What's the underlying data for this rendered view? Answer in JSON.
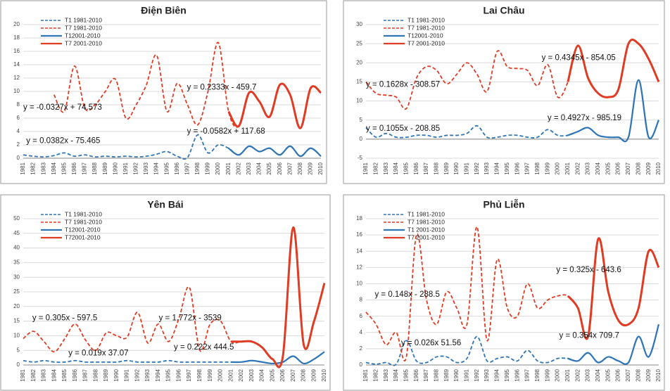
{
  "chart_data": [
    {
      "type": "line",
      "title": "Điện Biên",
      "categories": [
        "1981",
        "1982",
        "1983",
        "1984",
        "1985",
        "1986",
        "1987",
        "1988",
        "1989",
        "1990",
        "1991",
        "1992",
        "1993",
        "1994",
        "1995",
        "1996",
        "1997",
        "1998",
        "1999",
        "2000",
        "2001",
        "2002",
        "2003",
        "2004",
        "2005",
        "2006",
        "2007",
        "2008",
        "2009",
        "2010"
      ],
      "ylim": [
        0,
        20
      ],
      "yticks": [
        0,
        2,
        4,
        6,
        8,
        10,
        12,
        14,
        16,
        18,
        20
      ],
      "grid": true,
      "series": [
        {
          "name": "T1 1981-2010",
          "color": "#2e75b6",
          "dashed": true,
          "values": [
            0.5,
            0.3,
            0.2,
            0.4,
            0.8,
            0.3,
            0.5,
            0.2,
            0.3,
            0.2,
            0.3,
            0.2,
            0.3,
            0.6,
            1.0,
            0.3,
            0.1,
            3.5,
            0.8,
            2.0,
            1.5,
            0.5,
            1.8,
            1.0,
            1.5,
            0.5,
            1.8,
            0.3,
            1.5,
            0.3
          ]
        },
        {
          "name": "T7 1981-2010",
          "color": "#e03c24",
          "dashed": true,
          "values": [
            null,
            null,
            null,
            9.5,
            7,
            13.8,
            7.5,
            8,
            10,
            11.8,
            6,
            8,
            11,
            15.4,
            7,
            11.2,
            8,
            5,
            10,
            17.3,
            7,
            4.8,
            9.8,
            8.5,
            6.2,
            11,
            9.5,
            4.5,
            10.5,
            9.8
          ]
        },
        {
          "name": "T12001-2010",
          "color": "#2e75b6",
          "dashed": false,
          "values": [
            null,
            null,
            null,
            null,
            null,
            null,
            null,
            null,
            null,
            null,
            null,
            null,
            null,
            null,
            null,
            null,
            null,
            null,
            null,
            null,
            1.5,
            0.5,
            1.8,
            1.0,
            1.5,
            0.5,
            1.8,
            0.3,
            1.5,
            0.3
          ]
        },
        {
          "name": "T7 2001-2010",
          "color": "#e03c24",
          "dashed": false,
          "values": [
            null,
            null,
            null,
            null,
            null,
            null,
            null,
            null,
            null,
            null,
            null,
            null,
            null,
            null,
            null,
            null,
            null,
            null,
            null,
            null,
            7,
            4.8,
            9.8,
            8.5,
            6.2,
            11,
            9.5,
            4.5,
            10.5,
            9.8
          ]
        }
      ],
      "annotations": [
        "y = 0.2333x - 459.7",
        "y = -0.0327x + 74.573",
        "y = -0.0582x + 117.68",
        "y = 0.0382x - 75.465"
      ]
    },
    {
      "type": "line",
      "title": "Lai Châu",
      "categories": [
        "1981",
        "1982",
        "1983",
        "1984",
        "1985",
        "1986",
        "1987",
        "1988",
        "1989",
        "1990",
        "1991",
        "1992",
        "1993",
        "1994",
        "1995",
        "1996",
        "1997",
        "1998",
        "1999",
        "2000",
        "2001",
        "2002",
        "2003",
        "2004",
        "2005",
        "2006",
        "2007",
        "2008",
        "2009",
        "2010"
      ],
      "ylim": [
        -5,
        30
      ],
      "yticks": [
        -5,
        0,
        5,
        10,
        15,
        20,
        25,
        30
      ],
      "grid": true,
      "series": [
        {
          "name": "T1 1981-2010",
          "color": "#2e75b6",
          "dashed": true,
          "values": [
            3,
            0.5,
            1.5,
            0.5,
            0.5,
            1,
            1,
            0.5,
            1,
            1,
            1.5,
            3.5,
            0.5,
            0.5,
            1,
            1,
            0.5,
            0.5,
            2.5,
            1,
            1,
            2,
            3,
            1,
            0.5,
            0.5,
            0.5,
            15.5,
            0.5,
            5
          ]
        },
        {
          "name": "T7 1981-2010",
          "color": "#e03c24",
          "dashed": true,
          "values": [
            15,
            12,
            11.5,
            11,
            8,
            16,
            19,
            18,
            14.5,
            17,
            20,
            17,
            12.5,
            23,
            19,
            18.5,
            18,
            14,
            19.5,
            11,
            15,
            24.5,
            16,
            12,
            11,
            13,
            25,
            25,
            21,
            15
          ]
        },
        {
          "name": "T12001-2010",
          "color": "#2e75b6",
          "dashed": false,
          "values": [
            null,
            null,
            null,
            null,
            null,
            null,
            null,
            null,
            null,
            null,
            null,
            null,
            null,
            null,
            null,
            null,
            null,
            null,
            null,
            null,
            1,
            2,
            3,
            1,
            0.5,
            0.5,
            0.5,
            15.5,
            0.5,
            5
          ]
        },
        {
          "name": "T7 2001-2010",
          "color": "#e03c24",
          "dashed": false,
          "values": [
            null,
            null,
            null,
            null,
            null,
            null,
            null,
            null,
            null,
            null,
            null,
            null,
            null,
            null,
            null,
            null,
            null,
            null,
            null,
            null,
            15,
            24.5,
            16,
            12,
            11,
            13,
            25,
            25,
            21,
            15
          ]
        }
      ],
      "annotations": [
        "y = 0.4345x - 854.05",
        "y = 0.1628x - 308.57",
        "y = 0.4927x - 985.19",
        "y = 0.1055x - 208.85"
      ]
    },
    {
      "type": "line",
      "title": "Yên Bái",
      "categories": [
        "1981",
        "1982",
        "1983",
        "1984",
        "1985",
        "1986",
        "1987",
        "1988",
        "1989",
        "1990",
        "1991",
        "1992",
        "1993",
        "1994",
        "1995",
        "1996",
        "1997",
        "1998",
        "1999",
        "2000",
        "2001",
        "2002",
        "2003",
        "2004",
        "2005",
        "2006",
        "2007",
        "2008",
        "2009",
        "2010"
      ],
      "ylim": [
        0,
        50
      ],
      "yticks": [
        0,
        5,
        10,
        15,
        20,
        25,
        30,
        35,
        40,
        45,
        50
      ],
      "grid": true,
      "series": [
        {
          "name": "T1 1981-2010",
          "color": "#2e75b6",
          "dashed": true,
          "values": [
            1.5,
            1,
            1.5,
            1,
            1,
            1.5,
            1,
            1,
            1,
            1,
            1.5,
            1,
            1,
            1,
            1.5,
            1,
            1,
            1,
            1,
            1,
            1,
            1,
            1.5,
            1,
            0.5,
            1,
            3,
            0.5,
            2,
            4.5
          ]
        },
        {
          "name": "T7 1981-2010",
          "color": "#e03c24",
          "dashed": true,
          "values": [
            9,
            11.5,
            8,
            4.5,
            9,
            14,
            8.5,
            5,
            11,
            10,
            9.5,
            18,
            7.5,
            14,
            8,
            16,
            26.5,
            5,
            14,
            15,
            8,
            8,
            8,
            6,
            2,
            3,
            47,
            7,
            15,
            28
          ]
        },
        {
          "name": "T12001-2010",
          "color": "#2e75b6",
          "dashed": false,
          "values": [
            null,
            null,
            null,
            null,
            null,
            null,
            null,
            null,
            null,
            null,
            null,
            null,
            null,
            null,
            null,
            null,
            null,
            null,
            null,
            null,
            1,
            1,
            1.5,
            1,
            0.5,
            1,
            3,
            0.5,
            2,
            4.5
          ]
        },
        {
          "name": "T72001-2010",
          "color": "#e03c24",
          "dashed": false,
          "values": [
            null,
            null,
            null,
            null,
            null,
            null,
            null,
            null,
            null,
            null,
            null,
            null,
            null,
            null,
            null,
            null,
            null,
            null,
            null,
            null,
            8,
            8,
            8,
            6,
            2,
            3,
            47,
            7,
            15,
            28
          ]
        }
      ],
      "annotations": [
        "y = 0.305x - 597.5",
        "y = 1.772x - 3539",
        "y = 0.019x  37.07",
        "y = 0.222x  444.5"
      ]
    },
    {
      "type": "line",
      "title": "Phủ Liễn",
      "categories": [
        "1981",
        "1982",
        "1983",
        "1984",
        "1985",
        "1986",
        "1987",
        "1988",
        "1989",
        "1990",
        "1991",
        "1992",
        "1993",
        "1994",
        "1995",
        "1996",
        "1997",
        "1998",
        "1999",
        "2000",
        "2001",
        "2002",
        "2003",
        "2004",
        "2005",
        "2006",
        "2007",
        "2008",
        "2009",
        "2010"
      ],
      "ylim": [
        0,
        18
      ],
      "yticks": [
        0,
        2,
        4,
        6,
        8,
        10,
        12,
        14,
        16,
        18
      ],
      "grid": true,
      "series": [
        {
          "name": "T1 1981-2010",
          "color": "#2e75b6",
          "dashed": true,
          "values": [
            0.3,
            0.1,
            0.3,
            0.1,
            3,
            0.5,
            0.3,
            1,
            1,
            0.3,
            0.8,
            3.5,
            0.5,
            0.8,
            1,
            0.5,
            1.8,
            0.5,
            0.3,
            0.8,
            0.8,
            0.5,
            1.5,
            0.3,
            1,
            0.5,
            0.3,
            3.5,
            1,
            5
          ]
        },
        {
          "name": "T7 1981-2010",
          "color": "#e03c24",
          "dashed": true,
          "values": [
            6.5,
            5,
            2.5,
            4,
            1,
            16,
            8,
            5,
            9,
            7,
            5,
            17,
            3,
            13,
            7,
            6,
            10,
            7,
            8,
            8.5,
            8.5,
            7,
            3.5,
            15.5,
            9,
            5.5,
            5,
            7,
            14,
            12
          ]
        },
        {
          "name": "T1 2001-2010",
          "color": "#2e75b6",
          "dashed": false,
          "values": [
            null,
            null,
            null,
            null,
            null,
            null,
            null,
            null,
            null,
            null,
            null,
            null,
            null,
            null,
            null,
            null,
            null,
            null,
            null,
            null,
            0.8,
            0.5,
            1.5,
            0.3,
            1,
            0.5,
            0.3,
            3.5,
            1,
            5
          ]
        },
        {
          "name": "T7 2001-2010",
          "color": "#e03c24",
          "dashed": false,
          "values": [
            null,
            null,
            null,
            null,
            null,
            null,
            null,
            null,
            null,
            null,
            null,
            null,
            null,
            null,
            null,
            null,
            null,
            null,
            null,
            null,
            8.5,
            7,
            3.5,
            15.5,
            9,
            5.5,
            5,
            7,
            14,
            12
          ]
        }
      ],
      "annotations": [
        "y = 0.148x - 288.5",
        "y = 0.325x - 643.6",
        "y = 0.026x  51.56",
        "y = 0.354x  709.7"
      ]
    }
  ]
}
